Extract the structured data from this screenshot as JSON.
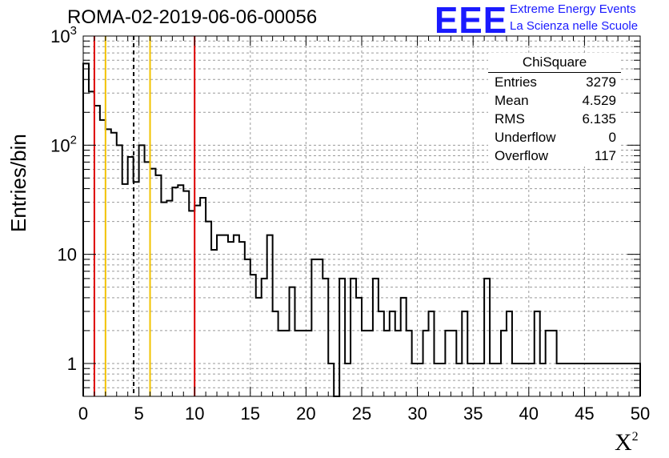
{
  "header": {
    "run_title": "ROMA-02-2019-06-06-00056",
    "logo_mark": "EEE",
    "logo_line1": "Extreme Energy Events",
    "logo_line2": "La Scienza nelle Scuole"
  },
  "stats_box": {
    "title": "ChiSquare",
    "rows": [
      {
        "key": "Entries",
        "value": "3279"
      },
      {
        "key": "Mean",
        "value": "4.529"
      },
      {
        "key": "RMS",
        "value": "6.135"
      },
      {
        "key": "Underflow",
        "value": "0"
      },
      {
        "key": "Overflow",
        "value": "117"
      }
    ]
  },
  "chart_data": {
    "type": "bar",
    "style": "step-histogram",
    "title": "",
    "xlabel": "X",
    "xlabel_superscript": "2",
    "ylabel": "Entries/bin",
    "xlim": [
      0,
      50
    ],
    "ylim": [
      0.5,
      1000
    ],
    "yscale": "log",
    "grid": true,
    "bin_width": 0.5,
    "bin_start": 0,
    "values": [
      560,
      310,
      230,
      170,
      140,
      130,
      100,
      44,
      78,
      46,
      100,
      70,
      61,
      53,
      30,
      31,
      41,
      43,
      38,
      25,
      28,
      33,
      20,
      11,
      15,
      15,
      13,
      15,
      13,
      9,
      6.5,
      4,
      6,
      15,
      3,
      2,
      2,
      5,
      2,
      2,
      2,
      9,
      9,
      6,
      1,
      0,
      6,
      1,
      6,
      4,
      2,
      2,
      6,
      3,
      2,
      3,
      2,
      4,
      2,
      1,
      1,
      2,
      3,
      1,
      1,
      2,
      2,
      1,
      3,
      1,
      1,
      1,
      6,
      1,
      1,
      2,
      3,
      1,
      1,
      1,
      1,
      3,
      1,
      2,
      2,
      1,
      1,
      1,
      1,
      1,
      1,
      1,
      1,
      1,
      1,
      1,
      1,
      1,
      1,
      1
    ],
    "values_override_note": "",
    "reference_lines": [
      {
        "x": 1,
        "color": "#dd0000",
        "style": "solid"
      },
      {
        "x": 2,
        "color": "#f2c200",
        "style": "solid"
      },
      {
        "x": 4.529,
        "color": "#000000",
        "style": "dashed"
      },
      {
        "x": 6,
        "color": "#f2c200",
        "style": "solid"
      },
      {
        "x": 10,
        "color": "#dd0000",
        "style": "solid"
      }
    ],
    "x_tick_labels": [
      "0",
      "5",
      "10",
      "15",
      "20",
      "25",
      "30",
      "35",
      "40",
      "45",
      "50"
    ],
    "y_tick_labels": [
      {
        "value": 1,
        "label": "1"
      },
      {
        "value": 10,
        "label": "10"
      },
      {
        "value": 100,
        "label": "10",
        "exp": "2"
      },
      {
        "value": 1000,
        "label": "10",
        "exp": "3"
      }
    ],
    "colors": {
      "line": "#000000",
      "grid": "#9a9a9a"
    }
  }
}
